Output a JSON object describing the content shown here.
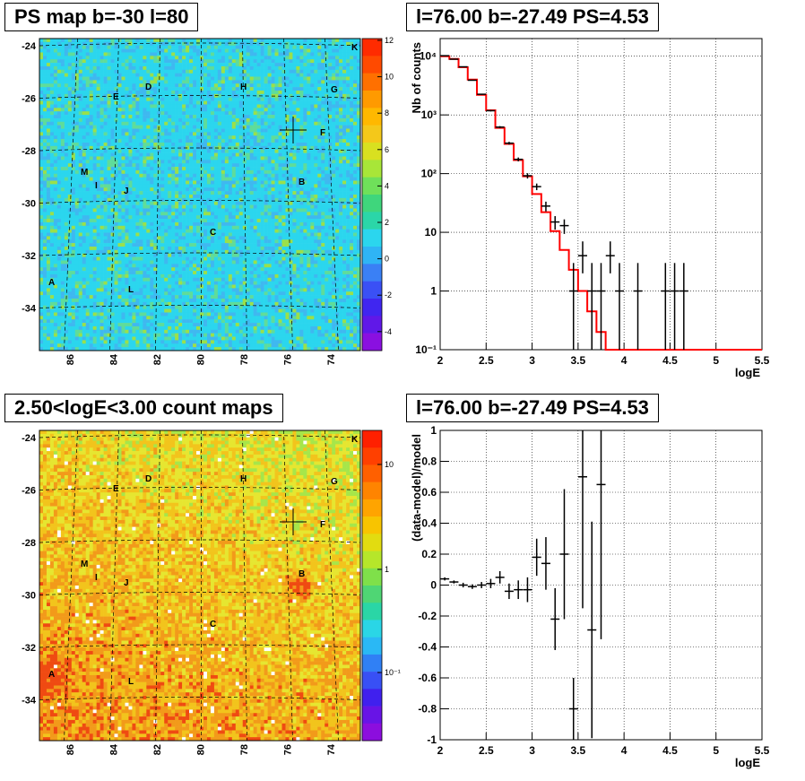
{
  "titles": {
    "ps_map": "PS map b=-30 l=80",
    "count_map": "2.50<logE<3.00 count maps",
    "spectrum": "l=76.00 b=-27.49 PS=4.53",
    "residual": "l=76.00 b=-27.49 PS=4.53"
  },
  "sky_axes": {
    "lat_ticks": [
      "-24",
      "-26",
      "-28",
      "-30",
      "-32",
      "-34"
    ],
    "lon_ticks": [
      "86",
      "84",
      "82",
      "80",
      "78",
      "76",
      "74"
    ],
    "sources": [
      "K",
      "D",
      "H",
      "G",
      "E",
      "F",
      "M",
      "I",
      "J",
      "B",
      "C",
      "A",
      "L"
    ]
  },
  "colors": {
    "map_bg_top": "#27d3ea",
    "map_bg_bottom": "#e87e1f",
    "model_line": "#ff0000",
    "data_marker": "#000000"
  },
  "chart_data": [
    {
      "type": "heatmap",
      "title": "PS map b=-30 l=80",
      "xlabel": "",
      "ylabel": "",
      "xlim": [
        88,
        72
      ],
      "ylim": [
        -36,
        -24
      ],
      "colorbar": {
        "ticks": [
          "12",
          "10",
          "8",
          "6",
          "4",
          "2",
          "0",
          "-2",
          "-4"
        ],
        "range": [
          -5,
          12
        ]
      },
      "dominant_value": 0,
      "marker": {
        "l": 76.0,
        "b": -27.49
      }
    },
    {
      "type": "heatmap",
      "title": "2.50<logE<3.00 count maps",
      "xlabel": "",
      "ylabel": "",
      "xlim": [
        88,
        72
      ],
      "ylim": [
        -36,
        -24
      ],
      "colorbar": {
        "ticks": [
          "10",
          "1",
          "10⁻¹"
        ],
        "scale": "log"
      },
      "marker": {
        "l": 76.0,
        "b": -27.49
      }
    },
    {
      "type": "line",
      "title": "l=76.00 b=-27.49 PS=4.53",
      "xlabel": "logE",
      "ylabel": "Nb of counts",
      "xlim": [
        2,
        5.5
      ],
      "ylim": [
        0.1,
        20000
      ],
      "yscale": "log",
      "grid": true,
      "x_ticks": [
        "2",
        "2.5",
        "3",
        "3.5",
        "4",
        "4.5",
        "5",
        "5.5"
      ],
      "y_ticks": [
        "10⁻¹",
        "1",
        "10",
        "10²",
        "10³",
        "10⁴"
      ],
      "model_steps": {
        "edges": [
          2.0,
          2.1,
          2.2,
          2.3,
          2.4,
          2.5,
          2.6,
          2.7,
          2.8,
          2.9,
          3.0,
          3.1,
          3.2,
          3.3,
          3.4,
          3.5,
          3.6,
          3.7,
          3.8,
          3.9,
          4.0,
          5.5
        ],
        "values": [
          10000,
          9000,
          6500,
          4000,
          2200,
          1200,
          600,
          320,
          170,
          90,
          45,
          22,
          10.5,
          5,
          2.3,
          1.0,
          0.45,
          0.2,
          0.1,
          0.1,
          0.1
        ]
      },
      "data_points": {
        "x": [
          2.05,
          2.15,
          2.25,
          2.35,
          2.45,
          2.55,
          2.65,
          2.75,
          2.85,
          2.95,
          3.05,
          3.15,
          3.25,
          3.35,
          3.45,
          3.55,
          3.65,
          3.75,
          3.85,
          3.95,
          4.15,
          4.45,
          4.55,
          4.65
        ],
        "y": [
          10200,
          8900,
          6600,
          3900,
          2250,
          1180,
          620,
          330,
          175,
          92,
          60,
          28,
          15,
          13,
          1,
          4,
          1,
          1,
          4,
          1,
          1,
          1,
          1,
          1
        ]
      }
    },
    {
      "type": "scatter",
      "title": "l=76.00 b=-27.49 PS=4.53",
      "xlabel": "logE",
      "ylabel": "(data-model)/model",
      "xlim": [
        2,
        5.5
      ],
      "ylim": [
        -1,
        1
      ],
      "grid": true,
      "x_ticks": [
        "2",
        "2.5",
        "3",
        "3.5",
        "4",
        "4.5",
        "5",
        "5.5"
      ],
      "y_ticks": [
        "1",
        "0.8",
        "0.6",
        "0.4",
        "0.2",
        "0",
        "-0.2",
        "-0.4",
        "-0.6",
        "-0.8",
        "-1"
      ],
      "points": {
        "x": [
          2.05,
          2.15,
          2.25,
          2.35,
          2.45,
          2.55,
          2.65,
          2.75,
          2.85,
          2.95,
          3.05,
          3.15,
          3.25,
          3.35,
          3.45,
          3.55,
          3.65,
          3.75
        ],
        "y": [
          0.04,
          0.02,
          0.0,
          -0.01,
          0.0,
          0.01,
          0.05,
          -0.04,
          -0.03,
          -0.03,
          0.18,
          0.14,
          -0.22,
          0.2,
          -0.8,
          0.7,
          -0.29,
          0.65
        ],
        "err": [
          0.01,
          0.01,
          0.015,
          0.015,
          0.02,
          0.03,
          0.04,
          0.05,
          0.06,
          0.08,
          0.12,
          0.17,
          0.2,
          0.42,
          0.2,
          0.85,
          0.7,
          1.0
        ]
      }
    }
  ]
}
